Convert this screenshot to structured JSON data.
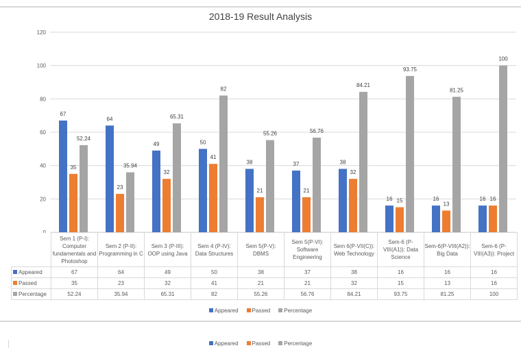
{
  "chart_data": {
    "type": "bar",
    "title": "2018-19 Result Analysis",
    "xlabel": "",
    "ylabel": "",
    "ylim": [
      0,
      120
    ],
    "yticks": [
      0,
      20,
      40,
      60,
      80,
      100,
      120
    ],
    "grid": true,
    "legend_position": "bottom",
    "categories": [
      "Sem 1 (P-I): Computer fundamentals and Photoshop",
      "Sem 2 (P-II): Programming in C",
      "Sem 3 (P-III): OOP using Java",
      "Sem 4 (P-IV): Data Structures",
      "Sem 5(P-V): DBMS",
      "Sem 5(P-VI): Software Engineering",
      "Sem 6(P-VII(C)): Web Technology",
      "Sem-6 (P-VIII(A1)): Data Science",
      "Sem-6(P-VIII(A2)): Big Data",
      "Sem-6 (P-VIII(A3)): Project"
    ],
    "series": [
      {
        "name": "Appeared",
        "color": "#4472c4",
        "values": [
          67,
          64,
          49,
          50,
          38,
          37,
          38,
          16,
          16,
          16
        ],
        "labels": [
          "67",
          "64",
          "49",
          "50",
          "38",
          "37",
          "38",
          "16",
          "16",
          "16"
        ]
      },
      {
        "name": "Passed",
        "color": "#ed7d31",
        "values": [
          35,
          23,
          32,
          41,
          21,
          21,
          32,
          15,
          13,
          16
        ],
        "labels": [
          "35",
          "23",
          "32",
          "41",
          "21",
          "21",
          "32",
          "15",
          "13",
          "16"
        ]
      },
      {
        "name": "Percentage",
        "color": "#a5a5a5",
        "values": [
          52.24,
          35.94,
          65.31,
          82,
          55.26,
          56.76,
          84.21,
          93.75,
          81.25,
          100
        ],
        "labels": [
          "52.24",
          "35.94",
          "65.31",
          "82",
          "55.26",
          "56.76",
          "84.21",
          "93.75",
          "81.25",
          "100"
        ]
      }
    ]
  },
  "ui": {
    "legend_repeat": [
      "Appeared",
      "Passed",
      "Percentage"
    ]
  }
}
